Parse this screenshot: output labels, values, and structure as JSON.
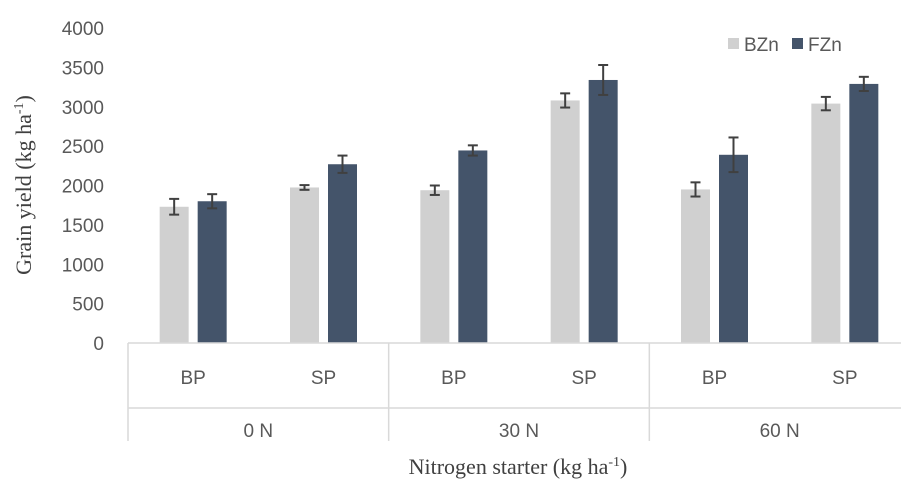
{
  "chart_data": {
    "type": "bar",
    "ylabel": "Grain yield (kg ha-1)",
    "ylabel_main": "Grain yield (kg ha",
    "ylabel_sup": "-1",
    "ylabel_end": ")",
    "xlabel": "Nitrogen starter (kg ha-1)",
    "xlabel_main": "Nitrogen starter (kg ha",
    "xlabel_sup": "-1",
    "xlabel_end": ")",
    "ylim": [
      0,
      4000
    ],
    "yticks": [
      0,
      500,
      1000,
      1500,
      2000,
      2500,
      3000,
      3500,
      4000
    ],
    "legend_position": "top-right",
    "groups": [
      {
        "label": "0 N",
        "categories": [
          "BP",
          "SP"
        ]
      },
      {
        "label": "30 N",
        "categories": [
          "BP",
          "SP"
        ]
      },
      {
        "label": "60 N",
        "categories": [
          "BP",
          "SP"
        ]
      }
    ],
    "series": [
      {
        "name": "BZn",
        "color": "#d0d0d0",
        "values": [
          1730,
          1975,
          1940,
          3080,
          1950,
          3040
        ],
        "errors": [
          100,
          30,
          60,
          90,
          90,
          85
        ]
      },
      {
        "name": "FZn",
        "color": "#44546a",
        "values": [
          1800,
          2270,
          2445,
          3340,
          2390,
          3290
        ],
        "errors": [
          90,
          110,
          65,
          190,
          220,
          90
        ]
      }
    ],
    "error_bar_color": "#404040",
    "grid": false
  }
}
